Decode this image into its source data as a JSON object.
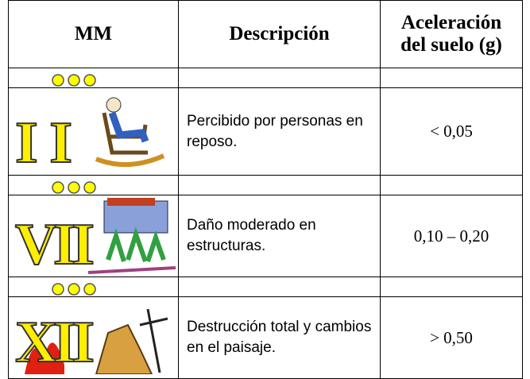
{
  "table": {
    "header": [
      "MM",
      "Descripción",
      "Aceleración del suelo (g)"
    ],
    "rows": [
      {
        "numeral": "II",
        "description": "Percibido por personas en reposo.",
        "acceleration": "< 0,05"
      },
      {
        "numeral": "VII",
        "description": "Daño moderado en estructuras.",
        "acceleration": "0,10 – 0,20"
      },
      {
        "numeral": "XII",
        "description": "Destrucción total y cambios en el paisaje.",
        "acceleration": "> 0,50"
      }
    ]
  }
}
